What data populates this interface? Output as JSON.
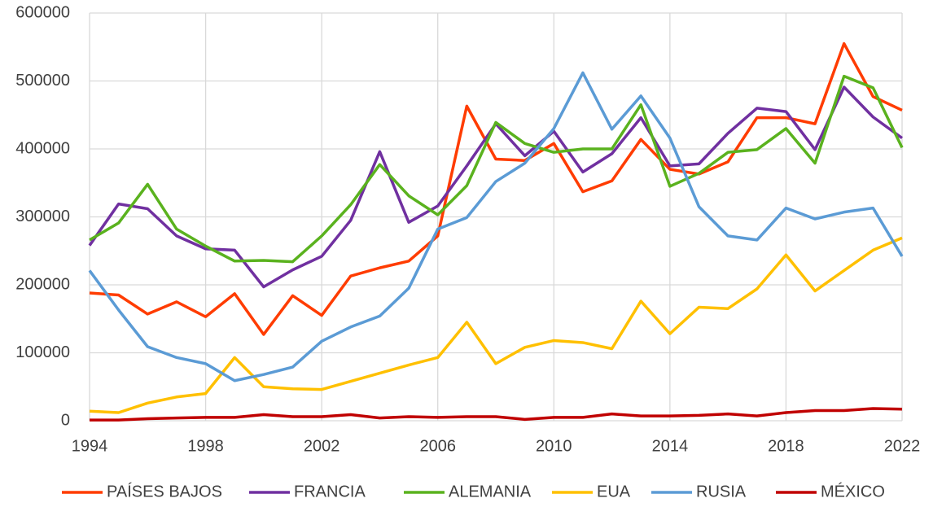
{
  "chart_data": {
    "type": "line",
    "x": [
      1994,
      1995,
      1996,
      1997,
      1998,
      1999,
      2000,
      2001,
      2002,
      2003,
      2004,
      2005,
      2006,
      2007,
      2008,
      2009,
      2010,
      2011,
      2012,
      2013,
      2014,
      2015,
      2016,
      2017,
      2018,
      2019,
      2020,
      2021,
      2022
    ],
    "xlim": [
      1994,
      2022
    ],
    "xticks": [
      1994,
      1998,
      2002,
      2006,
      2010,
      2014,
      2018,
      2022
    ],
    "ylim": [
      0,
      600000
    ],
    "yticks": [
      0,
      100000,
      200000,
      300000,
      400000,
      500000,
      600000
    ],
    "grid": true,
    "legend": "bottom",
    "series": [
      {
        "name": "PAÍSES BAJOS",
        "color": "#ff3c00",
        "values": [
          188000,
          185000,
          157000,
          175000,
          153000,
          187000,
          127000,
          184000,
          155000,
          213000,
          225000,
          235000,
          272000,
          463000,
          385000,
          383000,
          408000,
          337000,
          353000,
          414000,
          370000,
          363000,
          381000,
          446000,
          446000,
          437000,
          555000,
          477000,
          457000
        ]
      },
      {
        "name": "FRANCIA",
        "color": "#7030a0",
        "values": [
          258000,
          319000,
          312000,
          272000,
          253000,
          251000,
          197000,
          222000,
          242000,
          295000,
          396000,
          292000,
          316000,
          375000,
          437000,
          390000,
          426000,
          366000,
          393000,
          446000,
          375000,
          378000,
          423000,
          460000,
          455000,
          399000,
          491000,
          447000,
          416000
        ]
      },
      {
        "name": "ALEMANIA",
        "color": "#5ab21e",
        "values": [
          266000,
          291000,
          348000,
          282000,
          257000,
          235000,
          236000,
          234000,
          272000,
          318000,
          377000,
          331000,
          303000,
          346000,
          439000,
          408000,
          395000,
          400000,
          400000,
          465000,
          345000,
          364000,
          395000,
          399000,
          430000,
          379000,
          507000,
          490000,
          402000
        ]
      },
      {
        "name": "EUA",
        "color": "#ffc000",
        "values": [
          14000,
          12000,
          26000,
          35000,
          40000,
          93000,
          50000,
          47000,
          46000,
          58000,
          70000,
          82000,
          93000,
          145000,
          84000,
          108000,
          118000,
          115000,
          106000,
          176000,
          128000,
          167000,
          165000,
          194000,
          244000,
          191000,
          221000,
          251000,
          269000
        ]
      },
      {
        "name": "RUSIA",
        "color": "#5b9bd5",
        "values": [
          221000,
          163000,
          109000,
          93000,
          84000,
          59000,
          68000,
          79000,
          117000,
          138000,
          154000,
          195000,
          282000,
          299000,
          352000,
          379000,
          430000,
          512000,
          429000,
          478000,
          416000,
          315000,
          272000,
          266000,
          313000,
          297000,
          307000,
          313000,
          242000
        ]
      },
      {
        "name": "MÉXICO",
        "color": "#c00000",
        "values": [
          1000,
          1000,
          3000,
          4000,
          5000,
          5000,
          9000,
          6000,
          6000,
          9000,
          4000,
          6000,
          5000,
          6000,
          6000,
          2000,
          5000,
          5000,
          10000,
          7000,
          7000,
          8000,
          10000,
          7000,
          12000,
          15000,
          15000,
          18000,
          17000
        ]
      }
    ]
  }
}
